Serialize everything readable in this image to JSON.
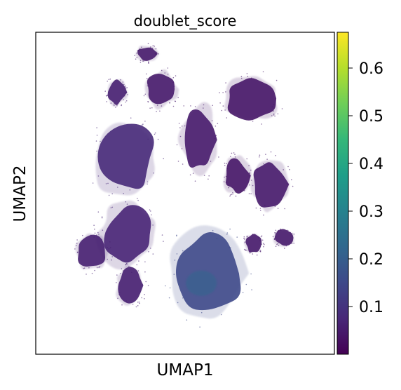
{
  "chart_data": {
    "type": "scatter",
    "title": "doublet_score",
    "xlabel": "UMAP1",
    "ylabel": "UMAP2",
    "x_ticks": [],
    "y_ticks": [],
    "grid": false,
    "colorbar": {
      "colormap": "viridis",
      "range": [
        0.0,
        0.675
      ],
      "ticks": [
        0.1,
        0.2,
        0.3,
        0.4,
        0.5,
        0.6
      ],
      "tick_labels": [
        "0.1",
        "0.2",
        "0.3",
        "0.4",
        "0.5",
        "0.6"
      ]
    },
    "clusters": [
      {
        "x": 4.1,
        "y": 8.5,
        "score": 0.05
      },
      {
        "x": 7.4,
        "y": 8.2,
        "score": 0.04
      },
      {
        "x": 5.5,
        "y": 6.8,
        "score": 0.05
      },
      {
        "x": 8.1,
        "y": 5.3,
        "score": 0.05
      },
      {
        "x": 6.9,
        "y": 5.6,
        "score": 0.04
      },
      {
        "x": 2.8,
        "y": 6.2,
        "score": 0.08
      },
      {
        "x": 2.9,
        "y": 3.6,
        "score": 0.07
      },
      {
        "x": 1.6,
        "y": 3.0,
        "score": 0.06
      },
      {
        "x": 5.8,
        "y": 2.3,
        "score": 0.15
      },
      {
        "x": 3.0,
        "y": 1.9,
        "score": 0.06
      },
      {
        "x": 7.5,
        "y": 3.3,
        "score": 0.05
      },
      {
        "x": 8.6,
        "y": 3.5,
        "score": 0.05
      },
      {
        "x": 2.5,
        "y": 8.4,
        "score": 0.06
      },
      {
        "x": 3.6,
        "y": 9.7,
        "score": 0.05
      }
    ]
  },
  "colors": {
    "viridis_stops": [
      "#440154",
      "#482878",
      "#3e4989",
      "#31688e",
      "#26828e",
      "#1f9e89",
      "#35b779",
      "#6ece58",
      "#b5de2b",
      "#fde725"
    ]
  }
}
